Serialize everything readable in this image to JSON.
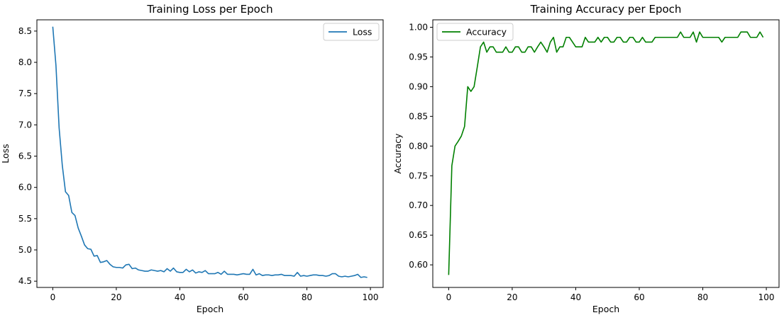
{
  "chart_data": [
    {
      "type": "line",
      "title": "Training Loss per Epoch",
      "xlabel": "Epoch",
      "ylabel": "Loss",
      "xlim": [
        -5,
        104
      ],
      "ylim": [
        4.4,
        8.68
      ],
      "xticks": [
        0,
        20,
        40,
        60,
        80,
        100
      ],
      "yticks": [
        4.5,
        5.0,
        5.5,
        6.0,
        6.5,
        7.0,
        7.5,
        8.0,
        8.5
      ],
      "ytick_format": 1,
      "legend": "upper right",
      "grid": false,
      "series": [
        {
          "name": "Loss",
          "color": "#1f77b4",
          "x": [
            0,
            1,
            2,
            3,
            4,
            5,
            6,
            7,
            8,
            9,
            10,
            11,
            12,
            13,
            14,
            15,
            16,
            17,
            18,
            19,
            20,
            21,
            22,
            23,
            24,
            25,
            26,
            27,
            28,
            29,
            30,
            31,
            32,
            33,
            34,
            35,
            36,
            37,
            38,
            39,
            40,
            41,
            42,
            43,
            44,
            45,
            46,
            47,
            48,
            49,
            50,
            51,
            52,
            53,
            54,
            55,
            56,
            57,
            58,
            59,
            60,
            61,
            62,
            63,
            64,
            65,
            66,
            67,
            68,
            69,
            70,
            71,
            72,
            73,
            74,
            75,
            76,
            77,
            78,
            79,
            80,
            81,
            82,
            83,
            84,
            85,
            86,
            87,
            88,
            89,
            90,
            91,
            92,
            93,
            94,
            95,
            96,
            97,
            98,
            99
          ],
          "y": [
            8.57,
            7.95,
            6.95,
            6.35,
            5.93,
            5.87,
            5.6,
            5.55,
            5.35,
            5.22,
            5.08,
            5.02,
            5.01,
            4.9,
            4.91,
            4.8,
            4.81,
            4.83,
            4.77,
            4.73,
            4.72,
            4.72,
            4.71,
            4.76,
            4.77,
            4.7,
            4.71,
            4.68,
            4.67,
            4.66,
            4.66,
            4.68,
            4.67,
            4.66,
            4.67,
            4.65,
            4.7,
            4.66,
            4.71,
            4.65,
            4.64,
            4.64,
            4.69,
            4.65,
            4.68,
            4.63,
            4.65,
            4.64,
            4.67,
            4.62,
            4.62,
            4.62,
            4.64,
            4.61,
            4.66,
            4.61,
            4.61,
            4.61,
            4.6,
            4.61,
            4.62,
            4.61,
            4.61,
            4.69,
            4.6,
            4.62,
            4.59,
            4.6,
            4.6,
            4.59,
            4.6,
            4.6,
            4.61,
            4.59,
            4.59,
            4.59,
            4.58,
            4.64,
            4.58,
            4.59,
            4.58,
            4.59,
            4.6,
            4.6,
            4.59,
            4.59,
            4.58,
            4.59,
            4.62,
            4.62,
            4.58,
            4.57,
            4.58,
            4.57,
            4.58,
            4.59,
            4.61,
            4.56,
            4.57,
            4.56
          ]
        }
      ]
    },
    {
      "type": "line",
      "title": "Training Accuracy per Epoch",
      "xlabel": "Epoch",
      "ylabel": "Accuracy",
      "xlim": [
        -5,
        104
      ],
      "ylim": [
        0.562,
        1.0125
      ],
      "xticks": [
        0,
        20,
        40,
        60,
        80,
        100
      ],
      "yticks": [
        0.6,
        0.65,
        0.7,
        0.75,
        0.8,
        0.85,
        0.9,
        0.95,
        1.0
      ],
      "ytick_format": 2,
      "legend": "upper left",
      "grid": false,
      "series": [
        {
          "name": "Accuracy",
          "color": "#008000",
          "x": [
            0,
            1,
            2,
            3,
            4,
            5,
            6,
            7,
            8,
            9,
            10,
            11,
            12,
            13,
            14,
            15,
            16,
            17,
            18,
            19,
            20,
            21,
            22,
            23,
            24,
            25,
            26,
            27,
            28,
            29,
            30,
            31,
            32,
            33,
            34,
            35,
            36,
            37,
            38,
            39,
            40,
            41,
            42,
            43,
            44,
            45,
            46,
            47,
            48,
            49,
            50,
            51,
            52,
            53,
            54,
            55,
            56,
            57,
            58,
            59,
            60,
            61,
            62,
            63,
            64,
            65,
            66,
            67,
            68,
            69,
            70,
            71,
            72,
            73,
            74,
            75,
            76,
            77,
            78,
            79,
            80,
            81,
            82,
            83,
            84,
            85,
            86,
            87,
            88,
            89,
            90,
            91,
            92,
            93,
            94,
            95,
            96,
            97,
            98,
            99
          ],
          "y": [
            0.583,
            0.767,
            0.8,
            0.808,
            0.817,
            0.833,
            0.9,
            0.892,
            0.9,
            0.933,
            0.967,
            0.975,
            0.958,
            0.967,
            0.967,
            0.958,
            0.958,
            0.958,
            0.967,
            0.958,
            0.958,
            0.967,
            0.967,
            0.958,
            0.958,
            0.967,
            0.967,
            0.958,
            0.967,
            0.975,
            0.967,
            0.958,
            0.975,
            0.983,
            0.958,
            0.967,
            0.967,
            0.983,
            0.983,
            0.975,
            0.967,
            0.967,
            0.967,
            0.983,
            0.975,
            0.975,
            0.975,
            0.983,
            0.975,
            0.983,
            0.983,
            0.975,
            0.975,
            0.983,
            0.983,
            0.975,
            0.975,
            0.983,
            0.983,
            0.975,
            0.975,
            0.983,
            0.975,
            0.975,
            0.975,
            0.983,
            0.983,
            0.983,
            0.983,
            0.983,
            0.983,
            0.983,
            0.983,
            0.992,
            0.983,
            0.983,
            0.983,
            0.992,
            0.975,
            0.992,
            0.983,
            0.983,
            0.983,
            0.983,
            0.983,
            0.983,
            0.975,
            0.983,
            0.983,
            0.983,
            0.983,
            0.983,
            0.992,
            0.992,
            0.992,
            0.983,
            0.983,
            0.983,
            0.992,
            0.983
          ]
        }
      ]
    }
  ]
}
